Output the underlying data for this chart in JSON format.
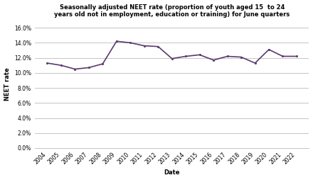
{
  "years": [
    "2004",
    "2005",
    "2006",
    "2007",
    "2008",
    "2009",
    "2010",
    "2011",
    "2012",
    "2013",
    "2014",
    "2015",
    "2016",
    "2017",
    "2018",
    "2019",
    "2020",
    "2021",
    "2022"
  ],
  "values": [
    0.113,
    0.11,
    0.105,
    0.107,
    0.112,
    0.142,
    0.14,
    0.136,
    0.135,
    0.119,
    0.122,
    0.124,
    0.117,
    0.122,
    0.121,
    0.113,
    0.131,
    0.122,
    0.122
  ],
  "line_color": "#5b3a6e",
  "line_width": 1.2,
  "title": "Seasonally adjusted NEET rate (proportion of youth aged 15  to 24\nyears old not in employment, education or training) for June quarters",
  "xlabel": "Date",
  "ylabel": "NEET rate",
  "ylim": [
    0.0,
    0.17
  ],
  "yticks": [
    0.0,
    0.02,
    0.04,
    0.06,
    0.08,
    0.1,
    0.12,
    0.14,
    0.16
  ],
  "grid_color": "#bbbbbb",
  "background_color": "#ffffff",
  "title_fontsize": 6.0,
  "axis_label_fontsize": 6.0,
  "tick_fontsize": 5.5
}
